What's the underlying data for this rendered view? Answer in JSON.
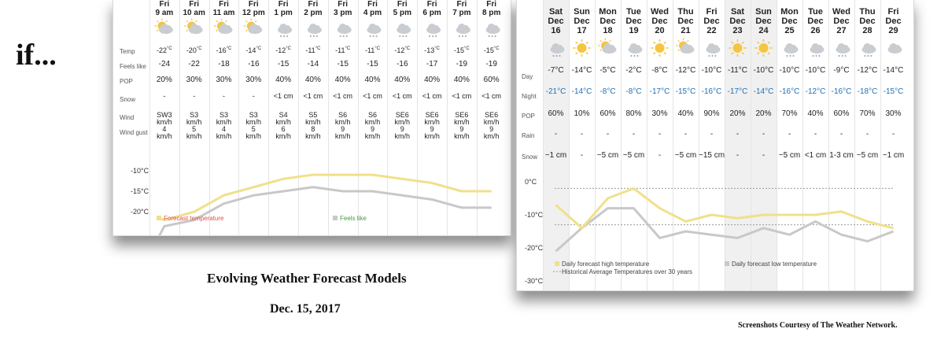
{
  "left_text": "if...",
  "caption": {
    "title": "Evolving Weather Forecast Models",
    "date": "Dec. 15, 2017",
    "credit": "Screenshots Courtesy of The Weather Network."
  },
  "hourly": {
    "columns": [
      {
        "day": "Fri",
        "time": "9 am",
        "icon": "sun-cloud-icon",
        "temp": "-22",
        "feels": "-24",
        "pop": "20%",
        "snow": "-",
        "wind": "SW3",
        "wind_unit": "km/h",
        "gust": "4",
        "gust_unit": "km/h"
      },
      {
        "day": "Fri",
        "time": "10 am",
        "icon": "sun-cloud-icon",
        "temp": "-20",
        "feels": "-22",
        "pop": "30%",
        "snow": "-",
        "wind": "S3",
        "wind_unit": "km/h",
        "gust": "5",
        "gust_unit": "km/h"
      },
      {
        "day": "Fri",
        "time": "11 am",
        "icon": "sun-cloud-icon",
        "temp": "-16",
        "feels": "-18",
        "pop": "30%",
        "snow": "-",
        "wind": "S3",
        "wind_unit": "km/h",
        "gust": "4",
        "gust_unit": "km/h"
      },
      {
        "day": "Fri",
        "time": "12 pm",
        "icon": "sun-cloud-icon",
        "temp": "-14",
        "feels": "-16",
        "pop": "30%",
        "snow": "-",
        "wind": "S3",
        "wind_unit": "km/h",
        "gust": "5",
        "gust_unit": "km/h"
      },
      {
        "day": "Fri",
        "time": "1 pm",
        "icon": "cloud-snow-icon",
        "temp": "-12",
        "feels": "-15",
        "pop": "40%",
        "snow": "<1 cm",
        "wind": "S4",
        "wind_unit": "km/h",
        "gust": "6",
        "gust_unit": "km/h"
      },
      {
        "day": "Fri",
        "time": "2 pm",
        "icon": "cloud-snow-icon",
        "temp": "-11",
        "feels": "-14",
        "pop": "40%",
        "snow": "<1 cm",
        "wind": "S5",
        "wind_unit": "km/h",
        "gust": "8",
        "gust_unit": "km/h"
      },
      {
        "day": "Fri",
        "time": "3 pm",
        "icon": "cloud-snow-icon",
        "temp": "-11",
        "feels": "-15",
        "pop": "40%",
        "snow": "<1 cm",
        "wind": "S6",
        "wind_unit": "km/h",
        "gust": "9",
        "gust_unit": "km/h"
      },
      {
        "day": "Fri",
        "time": "4 pm",
        "icon": "cloud-snow-icon",
        "temp": "-11",
        "feels": "-15",
        "pop": "40%",
        "snow": "<1 cm",
        "wind": "S6",
        "wind_unit": "km/h",
        "gust": "9",
        "gust_unit": "km/h"
      },
      {
        "day": "Fri",
        "time": "5 pm",
        "icon": "cloud-snow-icon",
        "temp": "-12",
        "feels": "-16",
        "pop": "40%",
        "snow": "<1 cm",
        "wind": "SE6",
        "wind_unit": "km/h",
        "gust": "9",
        "gust_unit": "km/h"
      },
      {
        "day": "Fri",
        "time": "6 pm",
        "icon": "cloud-snow-icon",
        "temp": "-13",
        "feels": "-17",
        "pop": "40%",
        "snow": "<1 cm",
        "wind": "SE6",
        "wind_unit": "km/h",
        "gust": "9",
        "gust_unit": "km/h"
      },
      {
        "day": "Fri",
        "time": "7 pm",
        "icon": "cloud-snow-icon",
        "temp": "-15",
        "feels": "-19",
        "pop": "40%",
        "snow": "<1 cm",
        "wind": "SE6",
        "wind_unit": "km/h",
        "gust": "9",
        "gust_unit": "km/h"
      },
      {
        "day": "Fri",
        "time": "8 pm",
        "icon": "cloud-snow-icon",
        "temp": "-15",
        "feels": "-19",
        "pop": "60%",
        "snow": "<1 cm",
        "wind": "SE6",
        "wind_unit": "km/h",
        "gust": "9",
        "gust_unit": "km/h"
      }
    ],
    "row_labels": {
      "temp": "Temp",
      "feels": "Feels like",
      "pop": "POP",
      "snow": "Snow",
      "wind": "Wind",
      "gust": "Wind gust"
    },
    "temp_unit": "°C",
    "chart": {
      "ytick_labels": [
        "-10°C",
        "-15°C",
        "-20°C"
      ],
      "yticks": [
        -10,
        -15,
        -20
      ],
      "ylim": [
        -21.5,
        -8.5
      ],
      "legend": [
        {
          "name": "Forecast temperature",
          "color": "#f0e08a",
          "text_color": "#d9534f"
        },
        {
          "name": "Feels like",
          "color": "#c8c8c8",
          "text_color": "#4a9a4a"
        }
      ]
    }
  },
  "daily": {
    "columns": [
      {
        "dow": "Sat",
        "mon": "Dec",
        "date": "16",
        "icon": "cloud-snow-icon",
        "day": "-7",
        "night": "-21",
        "pop": "60%",
        "rain": "-",
        "snow": "~1 cm",
        "shaded": true
      },
      {
        "dow": "Sun",
        "mon": "Dec",
        "date": "17",
        "icon": "sun-icon",
        "day": "-14",
        "night": "-14",
        "pop": "10%",
        "rain": "-",
        "snow": "-",
        "shaded": false
      },
      {
        "dow": "Mon",
        "mon": "Dec",
        "date": "18",
        "icon": "sun-cloud-icon",
        "day": "-5",
        "night": "-8",
        "pop": "60%",
        "rain": "-",
        "snow": "~5 cm",
        "shaded": false
      },
      {
        "dow": "Tue",
        "mon": "Dec",
        "date": "19",
        "icon": "cloud-snow-icon",
        "day": "-2",
        "night": "-8",
        "pop": "80%",
        "rain": "-",
        "snow": "~5 cm",
        "shaded": false
      },
      {
        "dow": "Wed",
        "mon": "Dec",
        "date": "20",
        "icon": "sun-icon",
        "day": "-8",
        "night": "-17",
        "pop": "30%",
        "rain": "-",
        "snow": "-",
        "shaded": false
      },
      {
        "dow": "Thu",
        "mon": "Dec",
        "date": "21",
        "icon": "sun-cloud-icon",
        "day": "-12",
        "night": "-15",
        "pop": "40%",
        "rain": "-",
        "snow": "~5 cm",
        "shaded": false
      },
      {
        "dow": "Fri",
        "mon": "Dec",
        "date": "22",
        "icon": "cloud-snow-icon",
        "day": "-10",
        "night": "-16",
        "pop": "90%",
        "rain": "-",
        "snow": "~15 cm",
        "shaded": false
      },
      {
        "dow": "Sat",
        "mon": "Dec",
        "date": "23",
        "icon": "sun-icon",
        "day": "-11",
        "night": "-17",
        "pop": "20%",
        "rain": "-",
        "snow": "-",
        "shaded": true
      },
      {
        "dow": "Sun",
        "mon": "Dec",
        "date": "24",
        "icon": "sun-icon",
        "day": "-10",
        "night": "-14",
        "pop": "20%",
        "rain": "-",
        "snow": "-",
        "shaded": true
      },
      {
        "dow": "Mon",
        "mon": "Dec",
        "date": "25",
        "icon": "cloud-snow-icon",
        "day": "-10",
        "night": "-16",
        "pop": "70%",
        "rain": "-",
        "snow": "~5 cm",
        "shaded": false
      },
      {
        "dow": "Tue",
        "mon": "Dec",
        "date": "26",
        "icon": "cloud-snow-icon",
        "day": "-10",
        "night": "-12",
        "pop": "40%",
        "rain": "-",
        "snow": "<1 cm",
        "shaded": false
      },
      {
        "dow": "Wed",
        "mon": "Dec",
        "date": "27",
        "icon": "cloud-snow-icon",
        "day": "-9",
        "night": "-16",
        "pop": "60%",
        "rain": "-",
        "snow": "1-3 cm",
        "shaded": false
      },
      {
        "dow": "Thu",
        "mon": "Dec",
        "date": "28",
        "icon": "cloud-snow-icon",
        "day": "-12",
        "night": "-18",
        "pop": "70%",
        "rain": "-",
        "snow": "~5 cm",
        "shaded": false
      },
      {
        "dow": "Fri",
        "mon": "Dec",
        "date": "29",
        "icon": "cloud-icon",
        "day": "-14",
        "night": "-15",
        "pop": "30%",
        "rain": "-",
        "snow": "~1 cm",
        "shaded": false
      }
    ],
    "row_labels": {
      "day": "Day",
      "night": "Night",
      "pop": "POP",
      "rain": "Rain",
      "snow": "Snow"
    },
    "temp_unit": "°C",
    "chart": {
      "ytick_labels": [
        "0°C",
        "-10°C",
        "-20°C",
        "-30°C"
      ],
      "yticks": [
        0,
        -10,
        -20,
        -30
      ],
      "ylim": [
        -30,
        0
      ],
      "historical_high": -2,
      "historical_low": -13,
      "legend": [
        {
          "name": "Daily forecast high temperature",
          "color": "#f0e08a"
        },
        {
          "name": "Historical Average Temperatures over 30 years",
          "color": "#999999"
        },
        {
          "name": "Daily forecast low temperature",
          "color": "#c8c8c8"
        }
      ]
    }
  },
  "colors": {
    "high_line": "#f0e08a",
    "low_line": "#c8c8c8",
    "night_text": "#1f6fb5",
    "sun": "#f5c542",
    "cloud": "#c9ccd1"
  }
}
